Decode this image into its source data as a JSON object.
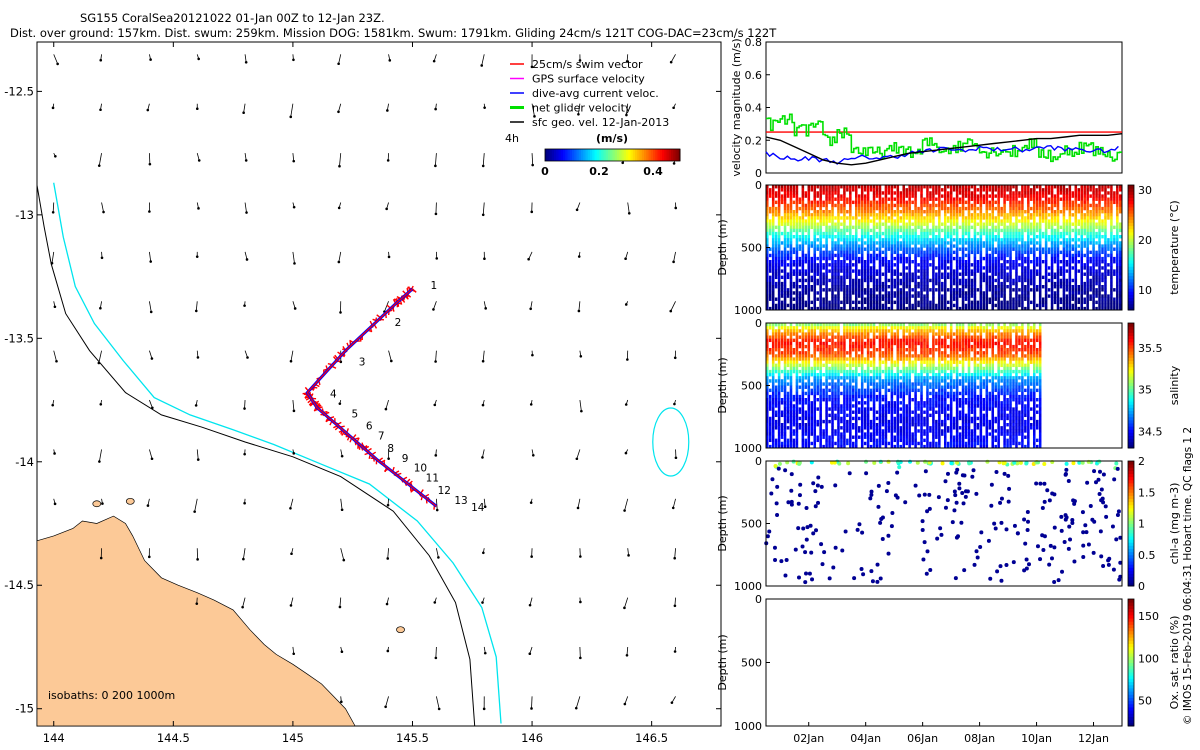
{
  "header": {
    "title": "SG155 CoralSea20121022 01-Jan 00Z to 12-Jan 23Z.",
    "subtitle": "Dist. over ground: 157km. Dist. swum: 259km. Mission DOG: 1581km. Swum: 1791km. Gliding 24cm/s 121T COG-DAC=23cm/s 122T"
  },
  "colors": {
    "land": "#fcc997",
    "isobath_200": "#00e5ee",
    "isobath_1000": "#000000",
    "swim_vector": "#ff0000",
    "gps_velocity": "#ff00ff",
    "dac": "#0000ff",
    "net_velocity": "#00e000",
    "sfc_geo": "#000000"
  },
  "map": {
    "lon_ticks": [
      "144",
      "144.5",
      "145",
      "145.5",
      "146",
      "146.5"
    ],
    "lat_ticks": [
      "-12.5",
      "-13",
      "-13.5",
      "-14",
      "-14.5",
      "-15"
    ],
    "isobath_label": "isobaths: 0   200  1000m",
    "timestamp_label": "4h",
    "legend": [
      {
        "label": "25cm/s swim vector",
        "color": "#ff0000"
      },
      {
        "label": "GPS surface velocity",
        "color": "#ff00ff"
      },
      {
        "label": "dive-avg current veloc.",
        "color": "#0000ff"
      },
      {
        "label": "net glider velocity",
        "color": "#00e000"
      },
      {
        "label": "sfc geo. vel. 12-Jan-2013",
        "color": "#000000"
      }
    ],
    "colorbar": {
      "label": "(m/s)",
      "ticks": [
        "0",
        "0.2",
        "0.4"
      ],
      "range": [
        0,
        0.5
      ]
    },
    "day_labels": [
      "1",
      "2",
      "3",
      "4",
      "5",
      "6",
      "7",
      "8",
      "9",
      "10",
      "11",
      "12",
      "13",
      "14"
    ]
  },
  "chart_data": [
    {
      "type": "map",
      "description_source": "glider track",
      "track": [
        {
          "lon": 145.5,
          "lat": -13.3
        },
        {
          "lon": 145.43,
          "lat": -13.36
        },
        {
          "lon": 145.22,
          "lat": -13.55
        },
        {
          "lon": 145.06,
          "lat": -13.72
        },
        {
          "lon": 145.1,
          "lat": -13.78
        },
        {
          "lon": 145.22,
          "lat": -13.88
        },
        {
          "lon": 145.35,
          "lat": -13.99
        },
        {
          "lon": 145.6,
          "lat": -14.18
        }
      ],
      "day_markers": [
        {
          "label": "1",
          "lon": 145.55,
          "lat": -13.3
        },
        {
          "label": "2",
          "lon": 145.4,
          "lat": -13.45
        },
        {
          "lon": 145.25,
          "lat": -13.61,
          "label": "3"
        },
        {
          "label": "4",
          "lon": 145.13,
          "lat": -13.74
        },
        {
          "label": "5",
          "lon": 145.22,
          "lat": -13.82
        },
        {
          "label": "6",
          "lon": 145.28,
          "lat": -13.87
        },
        {
          "label": "7",
          "lon": 145.33,
          "lat": -13.91
        },
        {
          "label": "8",
          "lon": 145.37,
          "lat": -13.96
        },
        {
          "label": "9",
          "lon": 145.43,
          "lat": -14.0
        },
        {
          "label": "10",
          "lon": 145.48,
          "lat": -14.04
        },
        {
          "label": "11",
          "lon": 145.53,
          "lat": -14.08
        },
        {
          "label": "12",
          "lon": 145.58,
          "lat": -14.13
        },
        {
          "label": "13",
          "lon": 145.65,
          "lat": -14.17
        },
        {
          "label": "14",
          "lon": 145.72,
          "lat": -14.2
        }
      ],
      "xlim": [
        143.93,
        146.79
      ],
      "ylim": [
        -15.07,
        -12.3
      ]
    },
    {
      "type": "line",
      "ylabel": "velocity magnitude (m/s)",
      "ylim": [
        0,
        0.8
      ],
      "yticks": [
        "0",
        "0.2",
        "0.4",
        "0.6",
        "0.8"
      ],
      "x": [
        0.5,
        1.0,
        1.5,
        2.0,
        2.5,
        3.0,
        3.5,
        4.0,
        4.5,
        5.0,
        5.5,
        6.0,
        6.5,
        7.0,
        7.5,
        8.0,
        8.5,
        9.0,
        9.5,
        10.0,
        10.5,
        11.0,
        11.5,
        12.0,
        12.5,
        13.0
      ],
      "series": [
        {
          "color": "#ff0000",
          "values": [
            0.25,
            0.25,
            0.25,
            0.25,
            0.25,
            0.25,
            0.25,
            0.25,
            0.25,
            0.25,
            0.25,
            0.25,
            0.25,
            0.25,
            0.25,
            0.25,
            0.25,
            0.25,
            0.25,
            0.25,
            0.25,
            0.25,
            0.25,
            0.25,
            0.25,
            0.25
          ]
        },
        {
          "color": "#00e000",
          "values": [
            0.3,
            0.32,
            0.26,
            0.28,
            0.2,
            0.25,
            0.14,
            0.12,
            0.13,
            0.15,
            0.12,
            0.18,
            0.15,
            0.16,
            0.2,
            0.13,
            0.14,
            0.13,
            0.18,
            0.12,
            0.1,
            0.14,
            0.16,
            0.13,
            0.11,
            0.15
          ]
        },
        {
          "color": "#0000ff",
          "values": [
            0.12,
            0.1,
            0.08,
            0.09,
            0.08,
            0.07,
            0.08,
            0.1,
            0.09,
            0.1,
            0.12,
            0.13,
            0.14,
            0.15,
            0.13,
            0.16,
            0.14,
            0.15,
            0.14,
            0.15,
            0.16,
            0.14,
            0.15,
            0.13,
            0.14,
            0.15
          ]
        },
        {
          "color": "#000000",
          "values": [
            0.22,
            0.2,
            0.16,
            0.12,
            0.08,
            0.06,
            0.05,
            0.06,
            0.08,
            0.1,
            0.12,
            0.13,
            0.14,
            0.15,
            0.16,
            0.17,
            0.18,
            0.19,
            0.2,
            0.21,
            0.21,
            0.22,
            0.23,
            0.23,
            0.23,
            0.24
          ]
        }
      ]
    },
    {
      "type": "heatmap",
      "ylabel": "Depth (m)",
      "clabel": "temperature (°C)",
      "clim": [
        6,
        31
      ],
      "cticks": [
        "10",
        "20",
        "30"
      ],
      "depth_ticks": [
        "0",
        "500",
        "1000"
      ],
      "depth_profile_m": [
        0,
        100,
        200,
        300,
        400,
        500,
        600,
        800,
        1000
      ],
      "values": [
        29.5,
        28,
        25,
        21,
        16,
        12,
        9,
        7,
        6
      ]
    },
    {
      "type": "heatmap",
      "ylabel": "Depth (m)",
      "clabel": "salinity",
      "clim": [
        34.3,
        35.8
      ],
      "cticks": [
        "34.5",
        "35",
        "35.5"
      ],
      "depth_ticks": [
        "0",
        "500",
        "1000"
      ],
      "depth_profile_m": [
        0,
        50,
        150,
        250,
        350,
        450,
        600,
        800,
        1000
      ],
      "values": [
        35.0,
        35.3,
        35.6,
        35.5,
        35.1,
        34.7,
        34.5,
        34.45,
        34.5
      ]
    },
    {
      "type": "scatter",
      "ylabel": "Depth (m)",
      "clabel": "chl-a (mg m-3)",
      "clim": [
        0,
        2
      ],
      "cticks": [
        "0",
        "0.5",
        "1",
        "1.5",
        "2"
      ],
      "depth_ticks": [
        "0",
        "500",
        "1000"
      ]
    },
    {
      "type": "heatmap",
      "ylabel": "Depth (m)",
      "clabel": "Ox. sat. ratio (%)",
      "clim": [
        20,
        170
      ],
      "cticks": [
        "50",
        "100",
        "150"
      ],
      "depth_ticks": [
        "0",
        "500",
        "1000"
      ],
      "x_ticks": [
        "02Jan",
        "04Jan",
        "06Jan",
        "08Jan",
        "10Jan",
        "12Jan"
      ]
    }
  ],
  "footer": {
    "credit": "© IMOS 15-Feb-2019 06:04:31 Hobart time. QC flags 1  2"
  }
}
